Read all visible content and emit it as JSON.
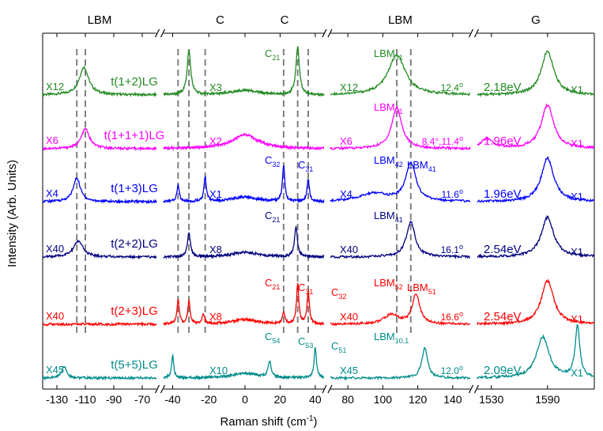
{
  "chart_data": {
    "type": "line",
    "title": "",
    "xlabel": "Raman shift (cm",
    "xlabel_sup": "-1",
    "xlabel_tail": ")",
    "ylabel": "Intensity (Arb. Units)",
    "panels": [
      {
        "name": "LBM",
        "title": "LBM",
        "xlim": [
          -140,
          -60
        ],
        "ticks": [
          -130,
          -110,
          -90,
          -70
        ]
      },
      {
        "name": "C-neg",
        "title": "C",
        "xlim": [
          -45,
          0
        ],
        "ticks": [
          -40,
          -20
        ]
      },
      {
        "name": "C-pos",
        "title": "C",
        "xlim": [
          0,
          45
        ],
        "ticks": [
          0,
          20,
          40
        ]
      },
      {
        "name": "LBM-high",
        "title": "LBM",
        "xlim": [
          70,
          150
        ],
        "ticks": [
          80,
          100,
          120,
          140
        ]
      },
      {
        "name": "G",
        "title": "G",
        "xlim": [
          1515,
          1640
        ],
        "ticks": [
          1530,
          1590
        ]
      }
    ],
    "series": [
      {
        "name": "t(1+2)LG",
        "color": "#228B22",
        "scales": [
          "X12",
          "X3",
          "X12",
          "X1"
        ],
        "energy": "2.18eV",
        "angle": "12.4",
        "peaks": [
          {
            "panel": 0,
            "x": -111,
            "h": 35,
            "w": 4
          },
          {
            "panel": 1,
            "x": -31,
            "h": 56,
            "w": 1.2
          },
          {
            "panel": 2,
            "x": 30,
            "h": 60,
            "w": 1.2
          },
          {
            "panel": 3,
            "x": 108,
            "h": 50,
            "w": 6
          },
          {
            "panel": 4,
            "x": 1590,
            "h": 55,
            "w": 8
          }
        ]
      },
      {
        "name": "t(1+1+1)LG",
        "color": "#FF00FF",
        "scales": [
          "X6",
          "X2",
          "X6",
          "X1"
        ],
        "energy": "1.96eV",
        "angle": "8.4°,11.4",
        "peaks": [
          {
            "panel": 0,
            "x": -110,
            "h": 25,
            "w": 3.5
          },
          {
            "panel": 3,
            "x": 108,
            "h": 52,
            "w": 3.5
          },
          {
            "panel": 4,
            "x": 1525,
            "h": 12,
            "w": 8
          },
          {
            "panel": 4,
            "x": 1590,
            "h": 55,
            "w": 8
          }
        ]
      },
      {
        "name": "t(1+3)LG",
        "color": "#0000FF",
        "scales": [
          "X4",
          "X1",
          "X4",
          "X1"
        ],
        "energy": "1.96eV",
        "angle": "11.6",
        "peaks": [
          {
            "panel": 0,
            "x": -116,
            "h": 30,
            "w": 3
          },
          {
            "panel": 1,
            "x": -37,
            "h": 20,
            "w": 0.8
          },
          {
            "panel": 1,
            "x": -22,
            "h": 30,
            "w": 0.8
          },
          {
            "panel": 2,
            "x": 22,
            "h": 45,
            "w": 0.8
          },
          {
            "panel": 2,
            "x": 36,
            "h": 28,
            "w": 0.8
          },
          {
            "panel": 3,
            "x": 95,
            "h": 10,
            "w": 10
          },
          {
            "panel": 3,
            "x": 116,
            "h": 48,
            "w": 3.5
          },
          {
            "panel": 4,
            "x": 1590,
            "h": 55,
            "w": 8
          }
        ]
      },
      {
        "name": "t(2+2)LG",
        "color": "#000080",
        "scales": [
          "X40",
          "X8",
          "X40",
          "X1"
        ],
        "energy": "2.54eV",
        "angle": "16.1",
        "peaks": [
          {
            "panel": 0,
            "x": -115,
            "h": 20,
            "w": 4
          },
          {
            "panel": 1,
            "x": -31,
            "h": 30,
            "w": 1
          },
          {
            "panel": 2,
            "x": 29,
            "h": 38,
            "w": 1
          },
          {
            "panel": 3,
            "x": 116,
            "h": 45,
            "w": 3
          },
          {
            "panel": 4,
            "x": 1590,
            "h": 50,
            "w": 8
          }
        ]
      },
      {
        "name": "t(2+3)LG",
        "color": "#FF0000",
        "scales": [
          "X40",
          "X8",
          "X40",
          "X1"
        ],
        "energy": "2.54eV",
        "angle": "16.6",
        "peaks": [
          {
            "panel": 1,
            "x": -37,
            "h": 30,
            "w": 0.8
          },
          {
            "panel": 1,
            "x": -31,
            "h": 28,
            "w": 0.8
          },
          {
            "panel": 1,
            "x": -23,
            "h": 12,
            "w": 0.8
          },
          {
            "panel": 2,
            "x": 22,
            "h": 15,
            "w": 0.8
          },
          {
            "panel": 2,
            "x": 30,
            "h": 50,
            "w": 0.8
          },
          {
            "panel": 2,
            "x": 36,
            "h": 40,
            "w": 0.8
          },
          {
            "panel": 3,
            "x": 105,
            "h": 12,
            "w": 5
          },
          {
            "panel": 3,
            "x": 119,
            "h": 38,
            "w": 2.5
          },
          {
            "panel": 4,
            "x": 1590,
            "h": 55,
            "w": 8
          }
        ]
      },
      {
        "name": "t(5+5)LG",
        "color": "#008B8B",
        "scales": [
          "X45",
          "X10",
          "X45",
          "X1"
        ],
        "energy": "2.09eV",
        "angle": "12.0",
        "peaks": [
          {
            "panel": 0,
            "x": -125,
            "h": 15,
            "w": 2
          },
          {
            "panel": 1,
            "x": -40,
            "h": 28,
            "w": 0.7
          },
          {
            "panel": 2,
            "x": 14,
            "h": 20,
            "w": 1
          },
          {
            "panel": 2,
            "x": 40,
            "h": 38,
            "w": 0.8
          },
          {
            "panel": 3,
            "x": 124,
            "h": 38,
            "w": 2
          },
          {
            "panel": 4,
            "x": 1585,
            "h": 52,
            "w": 8
          },
          {
            "panel": 4,
            "x": 1622,
            "h": 65,
            "w": 3
          }
        ]
      }
    ],
    "peak_labels": [
      {
        "series": 0,
        "panel": 2,
        "text": "C21",
        "base": "C",
        "sub": "21"
      },
      {
        "series": 0,
        "panel": 3,
        "text": "LBM31",
        "base": "LBM",
        "sub": "31"
      },
      {
        "series": 1,
        "panel": 3,
        "text": "LBM31",
        "base": "LBM",
        "sub": "31"
      },
      {
        "series": 2,
        "panel": 2,
        "text": "C32",
        "base": "C",
        "sub": "32"
      },
      {
        "series": 2,
        "panel": 2,
        "text": "C31",
        "base": "C",
        "sub": "31"
      },
      {
        "series": 2,
        "panel": 3,
        "text": "LBM42",
        "base": "LBM",
        "sub": "42"
      },
      {
        "series": 2,
        "panel": 3,
        "text": "LBM41",
        "base": "LBM",
        "sub": "41"
      },
      {
        "series": 3,
        "panel": 2,
        "text": "C21",
        "base": "C",
        "sub": "21"
      },
      {
        "series": 3,
        "panel": 3,
        "text": "LBM41",
        "base": "LBM",
        "sub": "41"
      },
      {
        "series": 4,
        "panel": 2,
        "text": "C21",
        "base": "C",
        "sub": "21"
      },
      {
        "series": 4,
        "panel": 2,
        "text": "C31",
        "base": "C",
        "sub": "31"
      },
      {
        "series": 4,
        "panel": 2,
        "text": "C32",
        "base": "C",
        "sub": "32"
      },
      {
        "series": 4,
        "panel": 3,
        "text": "LBM52",
        "base": "LBM",
        "sub": "52"
      },
      {
        "series": 4,
        "panel": 3,
        "text": "LBM51",
        "base": "LBM",
        "sub": "51"
      },
      {
        "series": 5,
        "panel": 2,
        "text": "C54",
        "base": "C",
        "sub": "54"
      },
      {
        "series": 5,
        "panel": 2,
        "text": "C53",
        "base": "C",
        "sub": "53"
      },
      {
        "series": 5,
        "panel": 2,
        "text": "C51",
        "base": "C",
        "sub": "51"
      },
      {
        "series": 5,
        "panel": 3,
        "text": "LBM10,1",
        "base": "LBM",
        "sub": "10,1"
      }
    ],
    "guide_lines": [
      {
        "panel": 0,
        "x": -110
      },
      {
        "panel": 0,
        "x": -116
      },
      {
        "panel": 1,
        "x": -37
      },
      {
        "panel": 1,
        "x": -31
      },
      {
        "panel": 1,
        "x": -22
      },
      {
        "panel": 2,
        "x": 22
      },
      {
        "panel": 2,
        "x": 30
      },
      {
        "panel": 2,
        "x": 36
      },
      {
        "panel": 3,
        "x": 108
      },
      {
        "panel": 3,
        "x": 116
      }
    ]
  }
}
